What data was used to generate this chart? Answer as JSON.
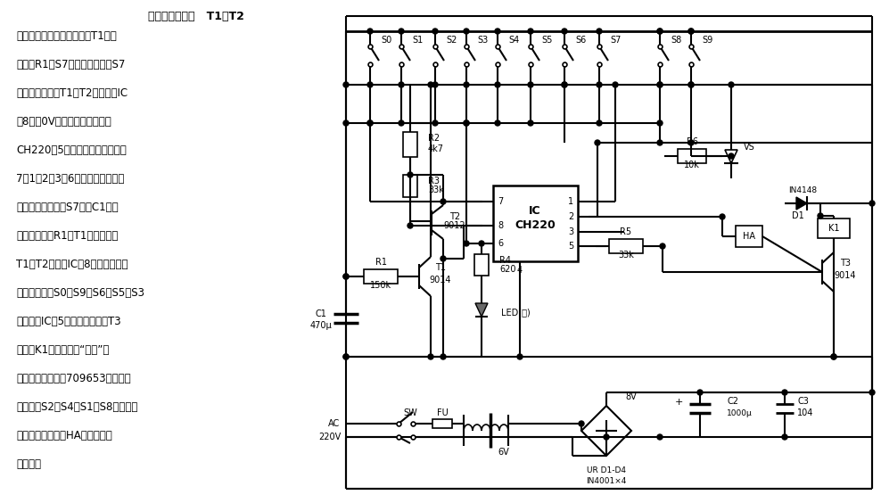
{
  "bg_color": "#ffffff",
  "title_text": "实用电子密码锁   T1、T2",
  "body_lines": [
    "构成定时供电开关。平时，T1的基",
    "极通过R1、S7接至电源。由于S7",
    "处于断位，所以T1、T2均截止，IC",
    "的8脚为0V，电路静止不耗电。",
    "CH220的5脚输出高电平的条件是",
    "7，1，2，3，6脚顺次得到瞬时触",
    "发高电平。当按动S7时，C1立即",
    "充电，随后经R1、T1放电，于是",
    "T1、T2导通，IC的8脚得电工作，",
    "接着依次按动S0、S9、S6、S5、S3",
    "键，此时IC的5脚输出高电平，T3",
    "导通、K1吸合，完成“启动”功",
    "能。此开锁密码为709653。不知密",
    "码者触及S2、S4、S1、S8键时，触",
    "发可控硅，讯响器HA得电发出报",
    "警信号。"
  ]
}
